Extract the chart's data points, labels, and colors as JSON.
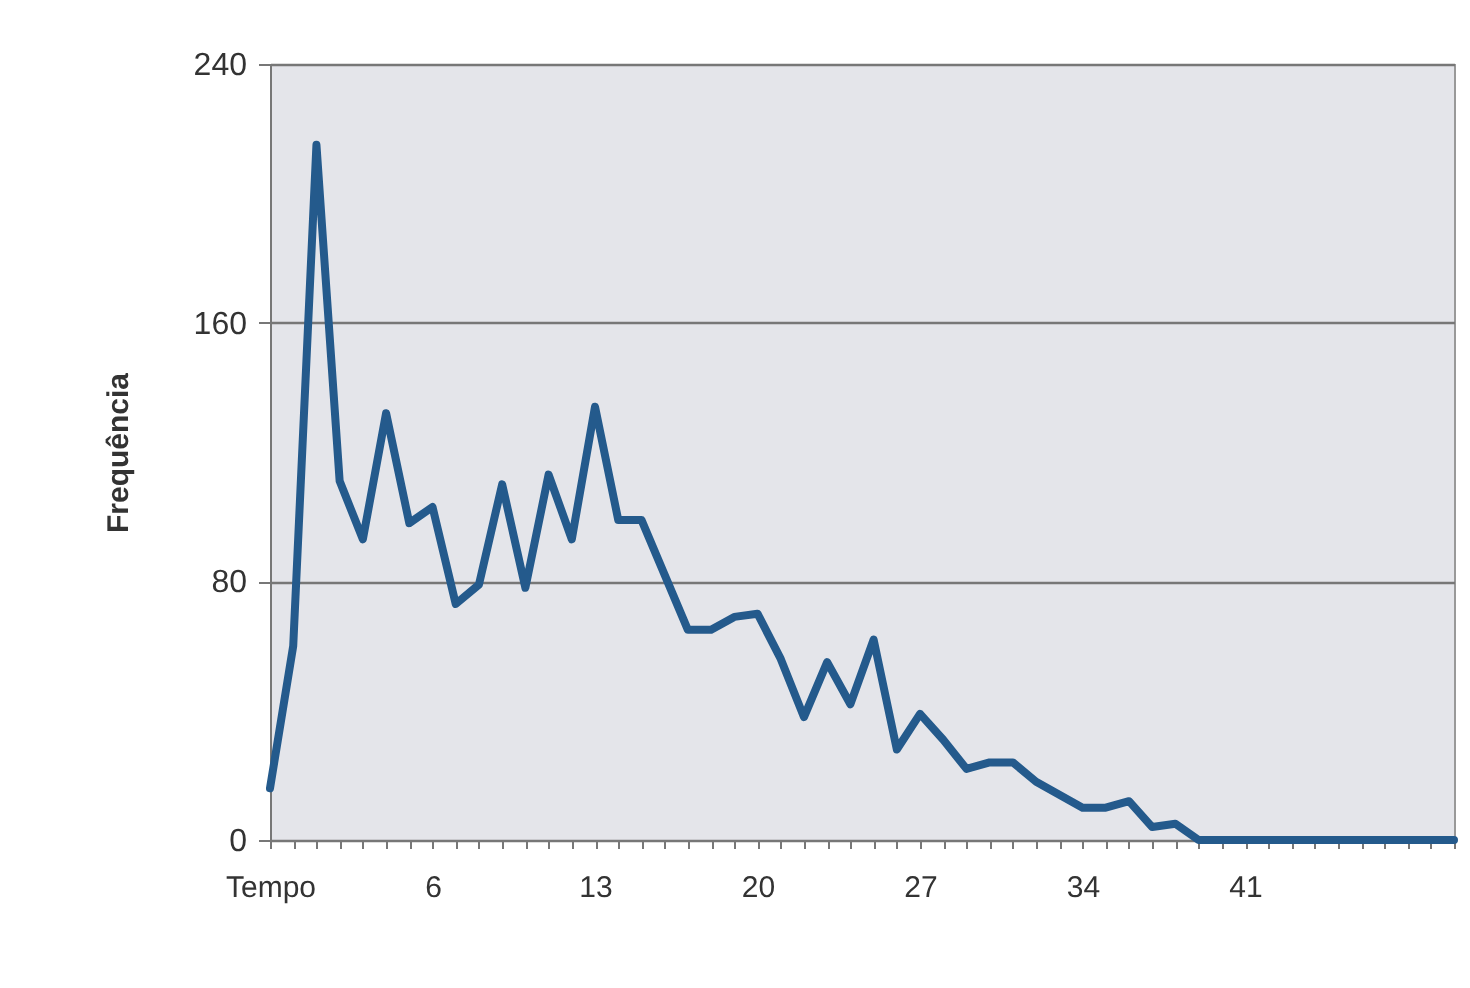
{
  "chart_data": {
    "type": "line",
    "ylabel": "Frequência",
    "categories": [
      "Tempo",
      null,
      null,
      null,
      null,
      null,
      null,
      "6",
      null,
      null,
      null,
      null,
      null,
      null,
      "13",
      null,
      null,
      null,
      null,
      null,
      null,
      "20",
      null,
      null,
      null,
      null,
      null,
      null,
      "27",
      null,
      null,
      null,
      null,
      null,
      null,
      "34",
      null,
      null,
      null,
      null,
      null,
      null,
      "41",
      null,
      null,
      null,
      null,
      null,
      null,
      null,
      null,
      null
    ],
    "series": [
      {
        "color": "#245a8c",
        "values": [
          16,
          60,
          215,
          111,
          93,
          132,
          98,
          103,
          73,
          79,
          110,
          78,
          113,
          93,
          134,
          99,
          99,
          82,
          65,
          65,
          69,
          70,
          56,
          38,
          55,
          42,
          62,
          28,
          39,
          31,
          22,
          24,
          24,
          18,
          14,
          10,
          10,
          12,
          4,
          5,
          0,
          0,
          0,
          0,
          0,
          0,
          0,
          0,
          0,
          0,
          0,
          0
        ]
      }
    ],
    "ylim": [
      0,
      240
    ],
    "yticks": [
      0,
      80,
      160,
      240
    ],
    "grid": "y",
    "marker": "none",
    "line_style": "solid"
  }
}
